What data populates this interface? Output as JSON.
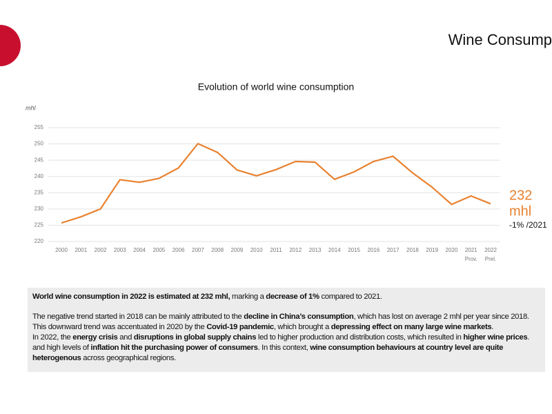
{
  "header": {
    "title": "Wine Consump"
  },
  "chart_data": {
    "type": "line",
    "title": "Evolution of world wine consumption",
    "y_label": "mhl",
    "categories": [
      "2000",
      "2001",
      "2002",
      "2003",
      "2004",
      "2005",
      "2006",
      "2007",
      "2008",
      "2009",
      "2010",
      "2011",
      "2012",
      "2013",
      "2014",
      "2015",
      "2016",
      "2017",
      "2018",
      "2019",
      "2020",
      "2021",
      "2022"
    ],
    "category_notes": [
      null,
      null,
      null,
      null,
      null,
      null,
      null,
      null,
      null,
      null,
      null,
      null,
      null,
      null,
      null,
      null,
      null,
      null,
      null,
      null,
      null,
      "Prov.",
      "Prel."
    ],
    "series": [
      {
        "name": "World wine consumption",
        "color": "#e8812f",
        "values": [
          225.7,
          227.6,
          230.0,
          239.0,
          238.2,
          239.4,
          242.6,
          250.1,
          247.4,
          242.0,
          240.2,
          242.1,
          244.6,
          244.4,
          239.1,
          241.4,
          244.6,
          246.2,
          241.1,
          236.7,
          231.4,
          234.0,
          231.6
        ]
      }
    ],
    "ylim": [
      220,
      255
    ],
    "yticks": [
      220,
      225,
      230,
      235,
      240,
      245,
      250,
      255
    ],
    "grid": true,
    "annotation": {
      "value": "232",
      "unit": "mhl",
      "change": "-1% /2021"
    }
  },
  "text_box": {
    "paragraphs": [
      [
        [
          {
            "text": "World wine consumption in 2022 is estimated at 232 mhl,",
            "bold": true
          },
          {
            "text": " marking a ",
            "bold": false
          },
          {
            "text": "decrease of 1%",
            "bold": true
          },
          {
            "text": " compared to 2021.",
            "bold": false
          }
        ]
      ],
      [
        [
          {
            "text": "The negative trend started in 2018 can be mainly attributed to the ",
            "bold": false
          },
          {
            "text": "decline in China’s consumption",
            "bold": true
          },
          {
            "text": ", which has lost on average 2 mhl per year since 2018.",
            "bold": false
          }
        ],
        [
          {
            "text": "This downward trend was accentuated in 2020 by the ",
            "bold": false
          },
          {
            "text": "Covid-19 pandemic",
            "bold": true
          },
          {
            "text": ", which brought a ",
            "bold": false
          },
          {
            "text": "depressing effect on many large wine markets",
            "bold": true
          },
          {
            "text": ".",
            "bold": false
          }
        ],
        [
          {
            "text": "In 2022, the ",
            "bold": false
          },
          {
            "text": "energy crisis",
            "bold": true
          },
          {
            "text": " and ",
            "bold": false
          },
          {
            "text": "disruptions in global supply chains",
            "bold": true
          },
          {
            "text": " led to higher production and distribution costs, which resulted in ",
            "bold": false
          },
          {
            "text": "higher wine prices",
            "bold": true
          },
          {
            "text": ". and high levels of ",
            "bold": false
          },
          {
            "text": "inflation hit the purchasing power of consumers",
            "bold": true
          },
          {
            "text": ". In this context, ",
            "bold": false
          },
          {
            "text": "wine consumption behaviours at country level are quite heterogenous",
            "bold": true
          },
          {
            "text": " across geographical regions.",
            "bold": false
          }
        ]
      ]
    ]
  }
}
